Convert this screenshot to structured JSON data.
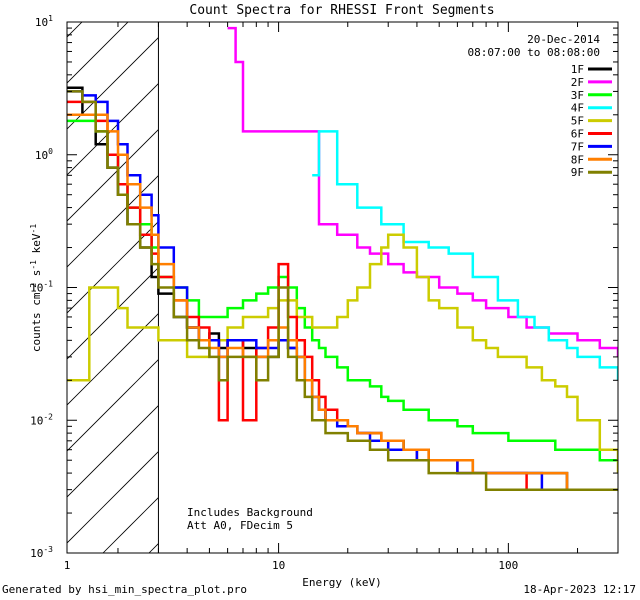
{
  "chart_data": {
    "type": "line",
    "title": "Count Spectra for RHESSI Front Segments",
    "xlabel": "Energy (keV)",
    "ylabel": "counts cm^-2 s^-1 keV^-1",
    "xscale": "log",
    "yscale": "log",
    "xlim": [
      1.2,
      300
    ],
    "ylim": [
      0.001,
      10
    ],
    "x_ticks": [
      1,
      10,
      100
    ],
    "y_ticks": [
      0.001,
      0.01,
      0.1,
      1,
      10
    ],
    "date": "20-Dec-2014",
    "time_range": "08:07:00 to 08:08:00",
    "annotations": [
      "Includes Background",
      "Att A0, FDecim 5"
    ],
    "hatched_region": [
      1.2,
      3.0
    ],
    "legend_position": "top-right",
    "series": [
      {
        "name": "1F",
        "color": "#000000",
        "x": [
          1.2,
          1.4,
          1.6,
          1.8,
          2.0,
          2.2,
          2.5,
          2.8,
          3.0,
          3.5,
          4.0,
          4.5,
          5,
          5.5,
          6,
          7,
          8,
          9,
          10,
          11,
          12,
          13,
          14,
          15,
          16,
          18,
          20,
          22,
          25,
          28,
          30,
          35,
          40,
          45,
          50,
          60,
          70,
          80,
          90,
          100,
          120,
          140,
          160,
          180,
          200,
          250,
          300
        ],
        "y": [
          3.2,
          2.0,
          1.2,
          0.8,
          0.5,
          0.3,
          0.2,
          0.12,
          0.09,
          0.06,
          0.05,
          0.04,
          0.045,
          0.035,
          0.04,
          0.035,
          0.03,
          0.03,
          0.04,
          0.035,
          0.03,
          0.02,
          0.015,
          0.012,
          0.01,
          0.01,
          0.009,
          0.008,
          0.008,
          0.007,
          0.007,
          0.006,
          0.006,
          0.005,
          0.005,
          0.005,
          0.004,
          0.004,
          0.004,
          0.004,
          0.004,
          0.004,
          0.004,
          0.003,
          0.003,
          0.003,
          0.003
        ]
      },
      {
        "name": "2F",
        "color": "#ff00ff",
        "x": [
          6,
          6.5,
          7,
          15,
          18,
          22,
          25,
          30,
          35,
          40,
          50,
          60,
          70,
          80,
          100,
          120,
          150,
          200,
          250,
          300
        ],
        "y": [
          9,
          5,
          1.5,
          0.3,
          0.25,
          0.2,
          0.18,
          0.15,
          0.13,
          0.12,
          0.1,
          0.09,
          0.08,
          0.07,
          0.06,
          0.05,
          0.045,
          0.04,
          0.035,
          0.03
        ]
      },
      {
        "name": "3F",
        "color": "#00ff00",
        "x": [
          1.2,
          1.4,
          1.6,
          1.8,
          2.0,
          2.2,
          2.5,
          2.8,
          3.0,
          3.5,
          4.0,
          4.5,
          5,
          5.5,
          6,
          7,
          8,
          9,
          10,
          11,
          12,
          13,
          14,
          15,
          16,
          18,
          20,
          22,
          25,
          28,
          30,
          35,
          40,
          45,
          50,
          60,
          70,
          80,
          90,
          100,
          120,
          140,
          160,
          180,
          200,
          250,
          300
        ],
        "y": [
          1.8,
          1.8,
          1.5,
          1.0,
          0.6,
          0.4,
          0.3,
          0.2,
          0.12,
          0.1,
          0.08,
          0.06,
          0.06,
          0.06,
          0.07,
          0.08,
          0.09,
          0.1,
          0.12,
          0.1,
          0.07,
          0.05,
          0.04,
          0.035,
          0.03,
          0.025,
          0.02,
          0.02,
          0.018,
          0.015,
          0.014,
          0.012,
          0.012,
          0.01,
          0.01,
          0.009,
          0.008,
          0.008,
          0.008,
          0.007,
          0.007,
          0.007,
          0.006,
          0.006,
          0.006,
          0.005,
          0.005
        ]
      },
      {
        "name": "4F",
        "color": "#00ffff",
        "x": [
          14,
          15,
          18,
          22,
          28,
          35,
          45,
          55,
          70,
          90,
          110,
          130,
          150,
          180,
          200,
          250,
          300
        ],
        "y": [
          0.7,
          1.5,
          0.6,
          0.4,
          0.3,
          0.22,
          0.2,
          0.18,
          0.12,
          0.08,
          0.06,
          0.05,
          0.04,
          0.035,
          0.03,
          0.025,
          0.02
        ]
      },
      {
        "name": "5F",
        "color": "#cccc00",
        "x": [
          1.2,
          1.3,
          1.5,
          1.8,
          2.0,
          2.2,
          2.5,
          3.0,
          3.5,
          4,
          5,
          6,
          7,
          8,
          9,
          10,
          12,
          14,
          16,
          18,
          20,
          22,
          25,
          28,
          30,
          35,
          40,
          45,
          50,
          60,
          70,
          80,
          90,
          100,
          120,
          140,
          160,
          180,
          200,
          250,
          300
        ],
        "y": [
          0.02,
          0.02,
          0.1,
          0.1,
          0.07,
          0.05,
          0.05,
          0.04,
          0.04,
          0.03,
          0.04,
          0.05,
          0.06,
          0.06,
          0.07,
          0.08,
          0.06,
          0.05,
          0.05,
          0.06,
          0.08,
          0.1,
          0.15,
          0.2,
          0.25,
          0.2,
          0.12,
          0.08,
          0.07,
          0.05,
          0.04,
          0.035,
          0.03,
          0.03,
          0.025,
          0.02,
          0.018,
          0.015,
          0.01,
          0.006,
          0.004
        ]
      },
      {
        "name": "6F",
        "color": "#ff0000",
        "x": [
          1.2,
          1.4,
          1.6,
          1.8,
          2.0,
          2.2,
          2.5,
          2.8,
          3.0,
          3.5,
          4.0,
          4.5,
          5,
          5.5,
          6,
          7,
          8,
          9,
          10,
          11,
          12,
          13,
          14,
          15,
          16,
          18,
          20,
          22,
          25,
          28,
          30,
          35,
          40,
          45,
          50,
          60,
          70,
          80,
          90,
          100,
          120,
          140,
          160,
          180,
          200,
          250,
          300
        ],
        "y": [
          2.5,
          2.5,
          1.8,
          1.0,
          0.6,
          0.4,
          0.25,
          0.18,
          0.12,
          0.08,
          0.06,
          0.05,
          0.04,
          0.01,
          0.04,
          0.01,
          0.035,
          0.05,
          0.15,
          0.06,
          0.04,
          0.03,
          0.02,
          0.015,
          0.012,
          0.01,
          0.009,
          0.008,
          0.008,
          0.007,
          0.006,
          0.006,
          0.005,
          0.005,
          0.005,
          0.004,
          0.004,
          0.004,
          0.004,
          0.004,
          0.003,
          0.003,
          0.003,
          0.003,
          0.003,
          0.003,
          0.003
        ]
      },
      {
        "name": "7F",
        "color": "#0000ff",
        "x": [
          1.2,
          1.4,
          1.6,
          1.8,
          2.0,
          2.2,
          2.5,
          2.8,
          3.0,
          3.5,
          4.0,
          4.5,
          5,
          5.5,
          6,
          7,
          8,
          9,
          10,
          11,
          12,
          13,
          14,
          15,
          16,
          18,
          20,
          22,
          25,
          28,
          30,
          35,
          40,
          45,
          50,
          60,
          70,
          80,
          90,
          100,
          120,
          140,
          160,
          180,
          200,
          250,
          300
        ],
        "y": [
          3.0,
          2.8,
          2.5,
          1.8,
          1.2,
          0.7,
          0.5,
          0.35,
          0.2,
          0.1,
          0.05,
          0.04,
          0.04,
          0.03,
          0.04,
          0.04,
          0.035,
          0.035,
          0.04,
          0.035,
          0.03,
          0.02,
          0.015,
          0.012,
          0.01,
          0.009,
          0.009,
          0.008,
          0.007,
          0.007,
          0.006,
          0.006,
          0.005,
          0.005,
          0.005,
          0.004,
          0.004,
          0.004,
          0.004,
          0.004,
          0.004,
          0.003,
          0.003,
          0.003,
          0.003,
          0.003,
          0.003
        ]
      },
      {
        "name": "8F",
        "color": "#ff7f00",
        "x": [
          1.2,
          1.4,
          1.6,
          1.8,
          2.0,
          2.2,
          2.5,
          2.8,
          3.0,
          3.5,
          4.0,
          4.5,
          5,
          5.5,
          6,
          7,
          8,
          9,
          10,
          11,
          12,
          13,
          14,
          15,
          16,
          18,
          20,
          22,
          25,
          28,
          30,
          35,
          40,
          45,
          50,
          60,
          70,
          80,
          90,
          100,
          120,
          140,
          160,
          180,
          200,
          250,
          300
        ],
        "y": [
          2.0,
          2.0,
          2.0,
          1.5,
          1.0,
          0.6,
          0.4,
          0.25,
          0.15,
          0.08,
          0.05,
          0.04,
          0.035,
          0.03,
          0.035,
          0.03,
          0.03,
          0.04,
          0.05,
          0.04,
          0.03,
          0.02,
          0.015,
          0.012,
          0.01,
          0.01,
          0.009,
          0.008,
          0.008,
          0.007,
          0.007,
          0.006,
          0.006,
          0.005,
          0.005,
          0.005,
          0.004,
          0.004,
          0.004,
          0.004,
          0.004,
          0.004,
          0.004,
          0.003,
          0.003,
          0.003,
          0.003
        ]
      },
      {
        "name": "9F",
        "color": "#808000",
        "x": [
          1.2,
          1.4,
          1.6,
          1.8,
          2.0,
          2.2,
          2.5,
          2.8,
          3.0,
          3.5,
          4.0,
          4.5,
          5,
          5.5,
          6,
          7,
          8,
          9,
          10,
          11,
          12,
          13,
          14,
          15,
          16,
          18,
          20,
          22,
          25,
          28,
          30,
          35,
          40,
          45,
          50,
          60,
          70,
          80,
          90,
          100,
          120,
          140,
          160,
          180,
          200,
          250,
          300
        ],
        "y": [
          3.0,
          2.5,
          1.5,
          0.8,
          0.5,
          0.3,
          0.2,
          0.15,
          0.1,
          0.06,
          0.04,
          0.035,
          0.03,
          0.02,
          0.03,
          0.03,
          0.02,
          0.03,
          0.1,
          0.03,
          0.02,
          0.015,
          0.01,
          0.01,
          0.008,
          0.008,
          0.007,
          0.007,
          0.006,
          0.006,
          0.005,
          0.005,
          0.005,
          0.004,
          0.004,
          0.004,
          0.004,
          0.003,
          0.003,
          0.003,
          0.003,
          0.003,
          0.003,
          0.003,
          0.003,
          0.003,
          0.003
        ]
      }
    ]
  },
  "footer": {
    "left": "Generated by hsi_min_spectra_plot.pro",
    "right": "18-Apr-2023 12:17"
  }
}
